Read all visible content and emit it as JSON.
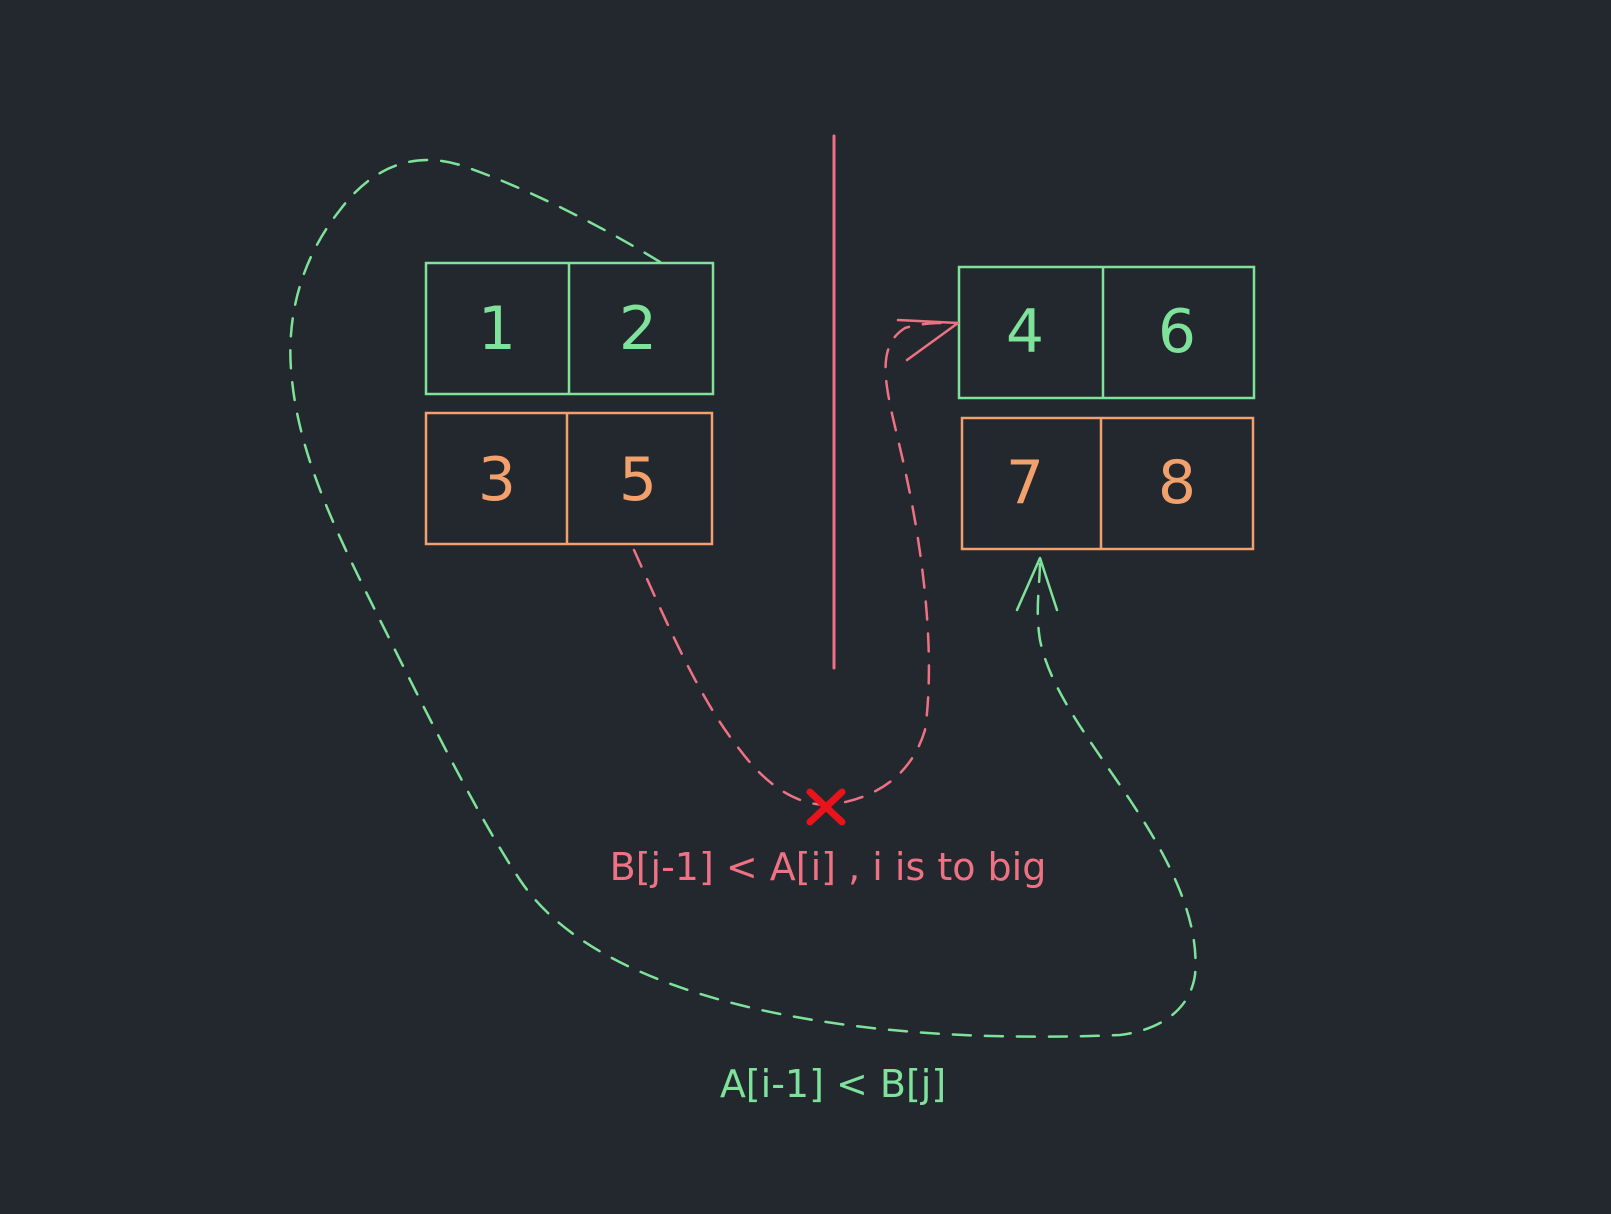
{
  "colors": {
    "background": "#23272e",
    "green": "#7ee29a",
    "orange": "#f2a06c",
    "pink": "#ee7283",
    "cross": "#e8131b"
  },
  "arrays": {
    "left_top": {
      "values": [
        "1",
        "2"
      ],
      "color": "green"
    },
    "left_bottom": {
      "values": [
        "3",
        "5"
      ],
      "color": "orange"
    },
    "right_top": {
      "values": [
        "4",
        "6"
      ],
      "color": "green"
    },
    "right_bottom": {
      "values": [
        "7",
        "8"
      ],
      "color": "orange"
    }
  },
  "labels": {
    "pink_condition": "B[j-1] < A[i] , i is to big",
    "green_condition": "A[i-1] < B[j]"
  },
  "icons": {
    "invalid_marker": "x-mark-icon",
    "arrowhead": "arrowhead-icon"
  }
}
